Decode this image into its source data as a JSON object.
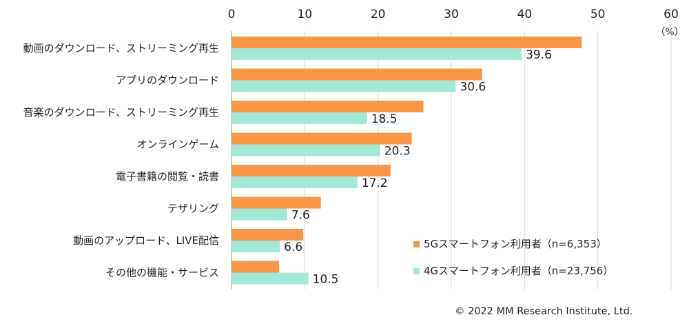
{
  "chart_data": {
    "type": "bar",
    "orientation": "horizontal",
    "categories": [
      "動画のダウンロード、ストリーミング再生",
      "アプリのダウンロード",
      "音楽のダウンロード、ストリーミング再生",
      "オンラインゲーム",
      "電子書籍の閲覧・読書",
      "テザリング",
      "動画のアップロード、LIVE配信",
      "その他の機能・サービス"
    ],
    "series": [
      {
        "name": "5Gスマートフォン利用者（n=6,353）",
        "color": "#F79646",
        "values": [
          47.8,
          34.2,
          26.2,
          24.6,
          21.7,
          12.2,
          9.8,
          6.5
        ]
      },
      {
        "name": "4Gスマートフォン利用者（n=23,756）",
        "color": "#A6E8D8",
        "values": [
          39.6,
          30.6,
          18.5,
          20.3,
          17.2,
          7.6,
          6.6,
          10.5
        ]
      }
    ],
    "data_labels": [
      "39.6",
      "30.6",
      "18.5",
      "20.3",
      "17.2",
      "7.6",
      "6.6",
      "10.5"
    ],
    "xlim": [
      0,
      60
    ],
    "ticks": [
      "0",
      "10",
      "20",
      "30",
      "40",
      "50",
      "60"
    ],
    "unit": "（%）",
    "grid": true,
    "legend_position": "bottom-right"
  },
  "credit": "© 2022 MM Research Institute, Ltd."
}
